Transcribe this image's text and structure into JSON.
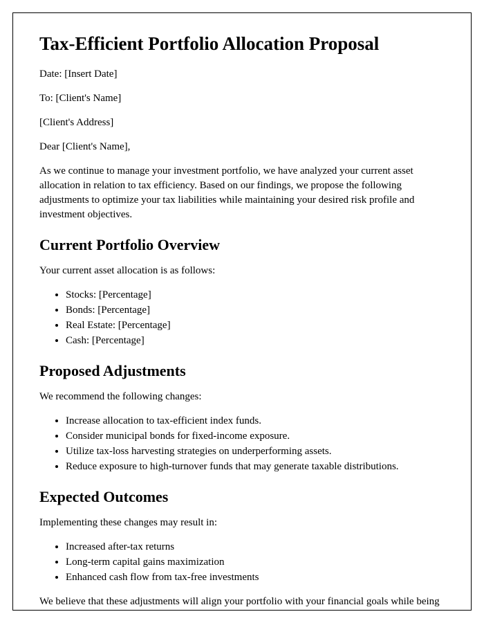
{
  "title": "Tax-Efficient Portfolio Allocation Proposal",
  "meta": {
    "date_line": "Date: [Insert Date]",
    "to_line": "To: [Client's Name]",
    "address_line": "[Client's Address]",
    "salutation": "Dear [Client's Name],"
  },
  "intro": "As we continue to manage your investment portfolio, we have analyzed your current asset allocation in relation to tax efficiency. Based on our findings, we propose the following adjustments to optimize your tax liabilities while maintaining your desired risk profile and investment objectives.",
  "sections": {
    "current": {
      "heading": "Current Portfolio Overview",
      "lead": "Your current asset allocation is as follows:",
      "items": [
        "Stocks: [Percentage]",
        "Bonds: [Percentage]",
        "Real Estate: [Percentage]",
        "Cash: [Percentage]"
      ]
    },
    "proposed": {
      "heading": "Proposed Adjustments",
      "lead": "We recommend the following changes:",
      "items": [
        "Increase allocation to tax-efficient index funds.",
        "Consider municipal bonds for fixed-income exposure.",
        "Utilize tax-loss harvesting strategies on underperforming assets.",
        "Reduce exposure to high-turnover funds that may generate taxable distributions."
      ]
    },
    "outcomes": {
      "heading": "Expected Outcomes",
      "lead": "Implementing these changes may result in:",
      "items": [
        "Increased after-tax returns",
        "Long-term capital gains maximization",
        "Enhanced cash flow from tax-free investments"
      ]
    }
  },
  "closing": "We believe that these adjustments will align your portfolio with your financial goals while being mindful of tax implications. Please feel free to reach out with any questions or to discuss this proposal further.",
  "styling": {
    "page_border_color": "#000000",
    "background_color": "#ffffff",
    "text_color": "#000000",
    "h1_fontsize": 27,
    "h2_fontsize": 22,
    "body_fontsize": 15,
    "font_family": "Times New Roman"
  }
}
